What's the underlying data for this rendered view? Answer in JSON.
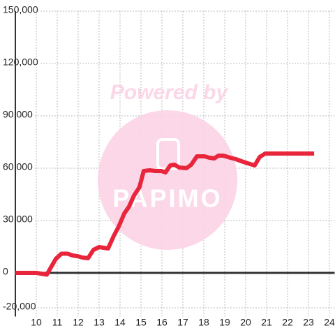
{
  "chart_data": {
    "type": "line",
    "watermark": [
      "Powered by",
      "PAPIMO"
    ],
    "series": [
      {
        "color": "#e8253a",
        "x": [
          9,
          10,
          10.5,
          10.93,
          11.2,
          11.5,
          11.73,
          12.0,
          12.2,
          12.47,
          12.73,
          13.0,
          13.43,
          13.7,
          13.93,
          14.2,
          14.43,
          14.67,
          14.93,
          15.13,
          15.43,
          15.67,
          15.97,
          16.17,
          16.4,
          16.6,
          16.83,
          17.17,
          17.4,
          17.67,
          18.03,
          18.27,
          18.5,
          18.7,
          18.93,
          19.27,
          19.53,
          19.8,
          20.1,
          20.43,
          20.67,
          20.93,
          23.27
        ],
        "values": [
          0,
          0,
          -1000,
          8000,
          11000,
          11000,
          10000,
          9500,
          8800,
          8400,
          13200,
          14800,
          14000,
          21200,
          26400,
          34000,
          38000,
          44400,
          49200,
          58400,
          58800,
          58400,
          58400,
          57600,
          61600,
          62000,
          60400,
          60000,
          62000,
          66800,
          66800,
          66000,
          65600,
          67200,
          67200,
          66000,
          65200,
          64000,
          62800,
          61600,
          66400,
          68400,
          68400
        ]
      }
    ],
    "xlim": [
      9,
      24.25
    ],
    "xticks": [
      10,
      11,
      12,
      13,
      14,
      15,
      16,
      17,
      18,
      19,
      20,
      21,
      22,
      23,
      24
    ],
    "ylim": [
      -25000,
      150000
    ],
    "yticks": [
      {
        "value": -20000,
        "label": "-20,000"
      },
      0,
      {
        "value": 30000,
        "label": "30,000"
      },
      {
        "value": 60000,
        "label": "60,000"
      },
      {
        "value": 90000,
        "label": "90,000"
      },
      {
        "value": 120000,
        "label": "120,000"
      },
      {
        "value": 150000,
        "label": "150,000"
      }
    ],
    "grid": true
  }
}
